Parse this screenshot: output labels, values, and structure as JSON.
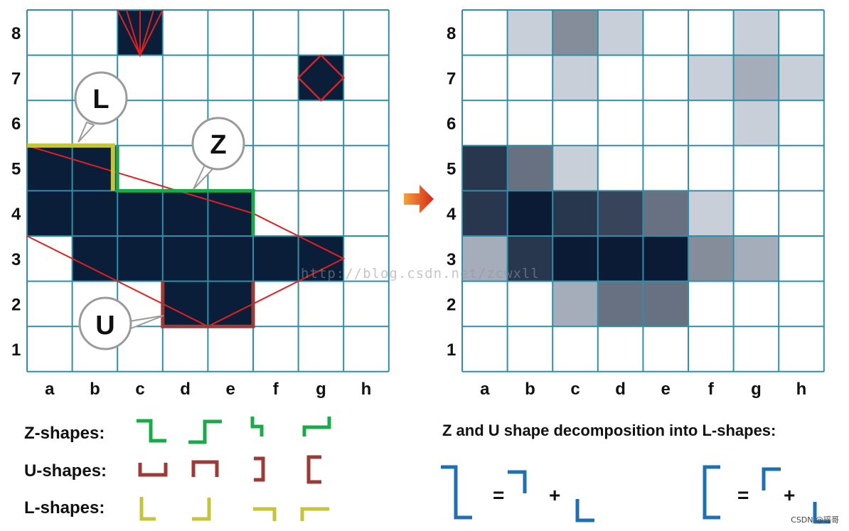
{
  "grid": {
    "cols": [
      "a",
      "b",
      "c",
      "d",
      "e",
      "f",
      "g",
      "h"
    ],
    "rows": [
      "8",
      "7",
      "6",
      "5",
      "4",
      "3",
      "2",
      "1"
    ]
  },
  "left_panel": {
    "filled_cells": [
      "c8",
      "g7",
      "a5",
      "b5",
      "a4",
      "b4",
      "c4",
      "d4",
      "e4",
      "b3",
      "c3",
      "d3",
      "e3",
      "f3",
      "g3",
      "d2",
      "e2"
    ],
    "fill_color": "#0a1e3a",
    "callouts": {
      "l_letter": "L",
      "z_letter": "Z",
      "u_letter": "U"
    }
  },
  "right_panel": {
    "cell_shades": [
      {
        "cell": "b8",
        "level": 0.13
      },
      {
        "cell": "c8",
        "level": 0.5
      },
      {
        "cell": "d8",
        "level": 0.13
      },
      {
        "cell": "g8",
        "level": 0.13
      },
      {
        "cell": "c7",
        "level": 0.13
      },
      {
        "cell": "f7",
        "level": 0.13
      },
      {
        "cell": "g7",
        "level": 0.28
      },
      {
        "cell": "h7",
        "level": 0.13
      },
      {
        "cell": "g6",
        "level": 0.13
      },
      {
        "cell": "a5",
        "level": 0.88
      },
      {
        "cell": "b5",
        "level": 0.62
      },
      {
        "cell": "c5",
        "level": 0.13
      },
      {
        "cell": "a4",
        "level": 0.88
      },
      {
        "cell": "b4",
        "level": 1.0
      },
      {
        "cell": "c4",
        "level": 0.88
      },
      {
        "cell": "d4",
        "level": 0.82
      },
      {
        "cell": "e4",
        "level": 0.62
      },
      {
        "cell": "f4",
        "level": 0.13
      },
      {
        "cell": "a3",
        "level": 0.28
      },
      {
        "cell": "b3",
        "level": 0.88
      },
      {
        "cell": "c3",
        "level": 1.0
      },
      {
        "cell": "d3",
        "level": 1.0
      },
      {
        "cell": "e3",
        "level": 1.0
      },
      {
        "cell": "f3",
        "level": 0.5
      },
      {
        "cell": "g3",
        "level": 0.28
      },
      {
        "cell": "c2",
        "level": 0.28
      },
      {
        "cell": "d2",
        "level": 0.62
      },
      {
        "cell": "e2",
        "level": 0.62
      }
    ],
    "dark_color": "#061632"
  },
  "arrow_color": "#e0301e",
  "legend": {
    "z_label": "Z-shapes:",
    "u_label": "U-shapes:",
    "l_label": "L-shapes:",
    "z_color": "#1aaa4a",
    "u_color": "#9b3a36",
    "l_color": "#c6c43a"
  },
  "decomposition": {
    "title": "Z and U shape decomposition  into L-shapes:",
    "equals": "=",
    "plus": "+",
    "color": "#1f6fb3"
  },
  "watermark": "http://blog.csdn.net/zcwxll",
  "footer_mark": "CSDN @瑶哥"
}
